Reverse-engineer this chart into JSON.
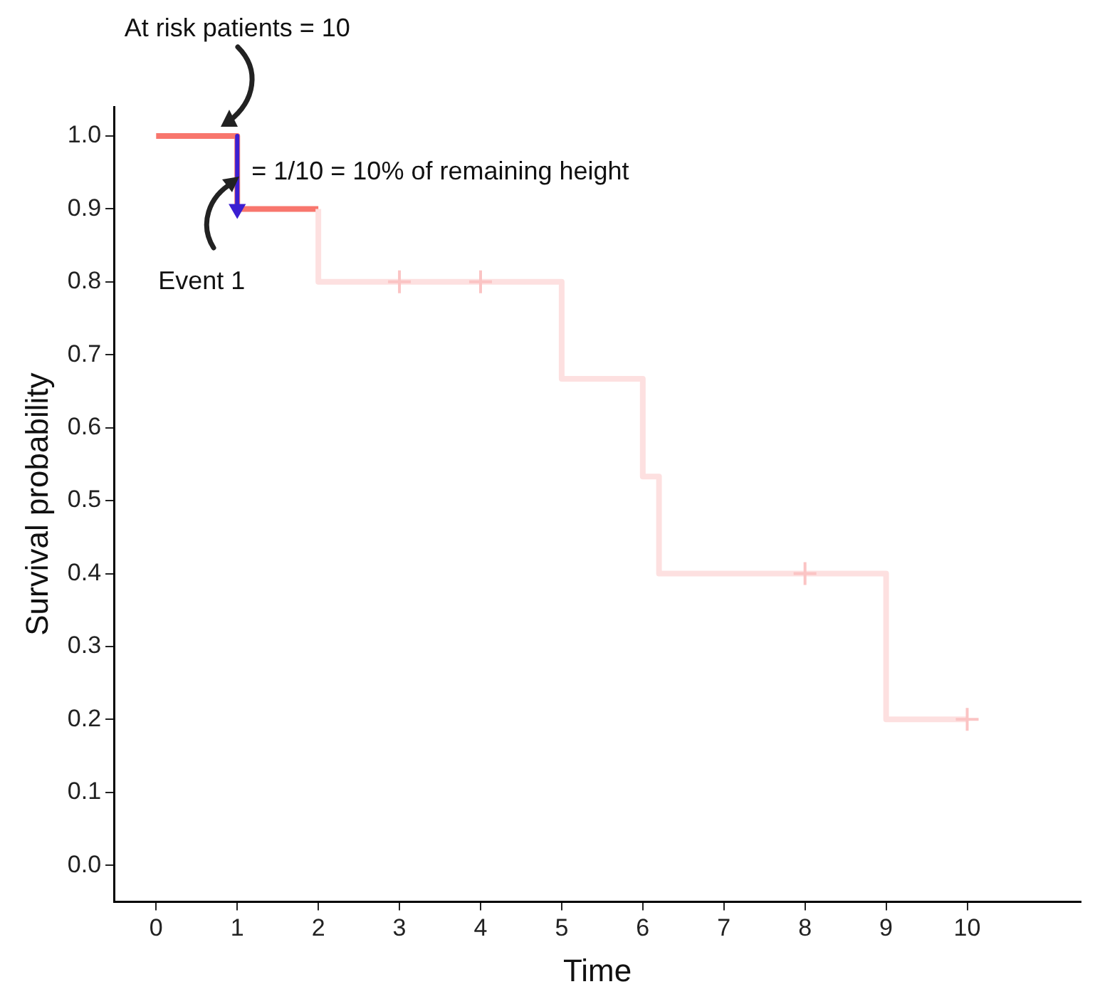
{
  "chart_data": {
    "type": "step",
    "xlabel": "Time",
    "ylabel": "Survival probability",
    "xlim": [
      -0.52,
      11.4
    ],
    "xticks": [
      0,
      1,
      2,
      3,
      4,
      5,
      6,
      7,
      8,
      9,
      10
    ],
    "ylim": [
      -0.05,
      1.04
    ],
    "yticks": [
      {
        "value": 0,
        "label": "0.0"
      },
      {
        "value": 0.1,
        "label": "0.1"
      },
      {
        "value": 0.2,
        "label": "0.2"
      },
      {
        "value": 0.3,
        "label": "0.3"
      },
      {
        "value": 0.4,
        "label": "0.4"
      },
      {
        "value": 0.5,
        "label": "0.5"
      },
      {
        "value": 0.6,
        "label": "0.6"
      },
      {
        "value": 0.7,
        "label": "0.7"
      },
      {
        "value": 0.8,
        "label": "0.8"
      },
      {
        "value": 0.9,
        "label": "0.9"
      },
      {
        "value": 1,
        "label": "1.0"
      }
    ],
    "grid": false,
    "legend": false,
    "series": [
      {
        "color": "#f8766d",
        "x": [
          0,
          1,
          2
        ],
        "values": [
          1,
          0.9,
          0.9
        ]
      },
      {
        "color": "#fde0e0",
        "x": [
          2,
          2,
          5,
          6,
          6.2,
          9,
          10
        ],
        "values": [
          0.9,
          0.8,
          0.667,
          0.533,
          0.4,
          0.2,
          0.2
        ]
      },
      {
        "type": "scatter",
        "marker": "cross",
        "color": "#fbc4c4",
        "x": [
          3,
          4,
          8,
          10
        ],
        "values": [
          0.8,
          0.8,
          0.4,
          0.2
        ]
      },
      {
        "type": "line",
        "color": "#3b1fd1",
        "x": [
          1,
          1
        ],
        "values": [
          1,
          0.9
        ]
      }
    ],
    "annotations": [
      "At risk patients = 10",
      "= 1/10 = 10% of remaining height",
      {
        "text": "Event 1",
        "x": 1,
        "y": 0.94
      }
    ]
  }
}
